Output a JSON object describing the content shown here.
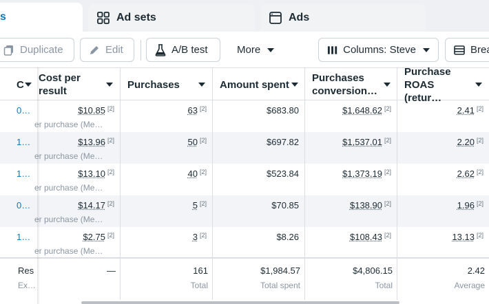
{
  "tabs": {
    "active_label": "s",
    "adsets_label": "Ad sets",
    "ads_label": "Ads"
  },
  "toolbar": {
    "duplicate_label": "Duplicate",
    "edit_label": "Edit",
    "ab_test_label": "A/B test",
    "more_label": "More",
    "columns_label": "Columns: Steve",
    "breakdown_label": "Brea"
  },
  "headers": {
    "col0": "C",
    "cost_per_result": "Cost per result",
    "purchases": "Purchases",
    "amount_spent": "Amount spent",
    "conversion_value": "Purchases conversion…",
    "roas": "Purchase ROAS (retur…"
  },
  "rows": [
    {
      "c0": "0…",
      "cost": "$10.85",
      "cost_sub": "er purchase (Me…",
      "purchases": "63",
      "spent": "$683.80",
      "conv": "$1,648.62",
      "roas": "2.41",
      "ref": "[2]"
    },
    {
      "c0": "1…",
      "cost": "$13.96",
      "cost_sub": "er purchase (Me…",
      "purchases": "50",
      "spent": "$697.82",
      "conv": "$1,537.01",
      "roas": "2.20",
      "ref": "[2]"
    },
    {
      "c0": "1…",
      "cost": "$13.10",
      "cost_sub": "er purchase (Me…",
      "purchases": "40",
      "spent": "$523.84",
      "conv": "$1,373.19",
      "roas": "2.62",
      "ref": "[2]"
    },
    {
      "c0": "0…",
      "cost": "$14.17",
      "cost_sub": "er purchase (Me…",
      "purchases": "5",
      "spent": "$70.85",
      "conv": "$138.90",
      "roas": "1.96",
      "ref": "[2]"
    },
    {
      "c0": "1…",
      "cost": "$2.75",
      "cost_sub": "er purchase (Me…",
      "purchases": "3",
      "spent": "$8.26",
      "conv": "$108.43",
      "roas": "13.13",
      "ref": "[2]"
    }
  ],
  "footer": {
    "c0_value": "Res",
    "c0_sub": "Ex…",
    "cost_value": "—",
    "purchases_value": "161",
    "purchases_sub": "Total",
    "spent_value": "$1,984.57",
    "spent_sub": "Total spent",
    "conv_value": "$4,806.15",
    "conv_sub": "Total",
    "roas_value": "2.42",
    "roas_sub": "Average"
  },
  "colors": {
    "link": "#0a78be",
    "text": "#1c2b33",
    "muted": "#8a96a3",
    "border": "#dadde1"
  }
}
